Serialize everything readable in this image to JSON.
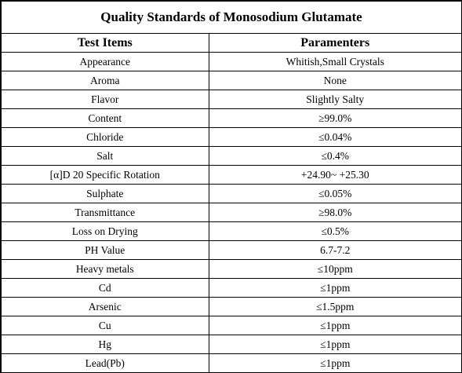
{
  "document": {
    "title": "Quality Standards of  Monosodium Glutamate",
    "columns": {
      "item": "Test Items",
      "parameter": "Paramenters"
    },
    "rows": [
      {
        "item": "Appearance",
        "parameter": "Whitish,Small Crystals"
      },
      {
        "item": "Aroma",
        "parameter": "None"
      },
      {
        "item": "Flavor",
        "parameter": "Slightly Salty"
      },
      {
        "item": "Content",
        "parameter": "≥99.0%"
      },
      {
        "item": "Chloride",
        "parameter": "≤0.04%"
      },
      {
        "item": "Salt",
        "parameter": "≤0.4%"
      },
      {
        "item": "[α]D 20 Specific Rotation",
        "parameter": "+24.90~ +25.30"
      },
      {
        "item": "Sulphate",
        "parameter": "≤0.05%"
      },
      {
        "item": "Transmittance",
        "parameter": "≥98.0%"
      },
      {
        "item": "Loss on Drying",
        "parameter": "≤0.5%"
      },
      {
        "item": "PH Value",
        "parameter": "6.7-7.2"
      },
      {
        "item": "Heavy metals",
        "parameter": "≤10ppm"
      },
      {
        "item": "Cd",
        "parameter": "≤1ppm"
      },
      {
        "item": "Arsenic",
        "parameter": "≤1.5ppm"
      },
      {
        "item": "Cu",
        "parameter": "≤1ppm"
      },
      {
        "item": "Hg",
        "parameter": "≤1ppm"
      },
      {
        "item": "Lead(Pb)",
        "parameter": "≤1ppm"
      }
    ]
  }
}
